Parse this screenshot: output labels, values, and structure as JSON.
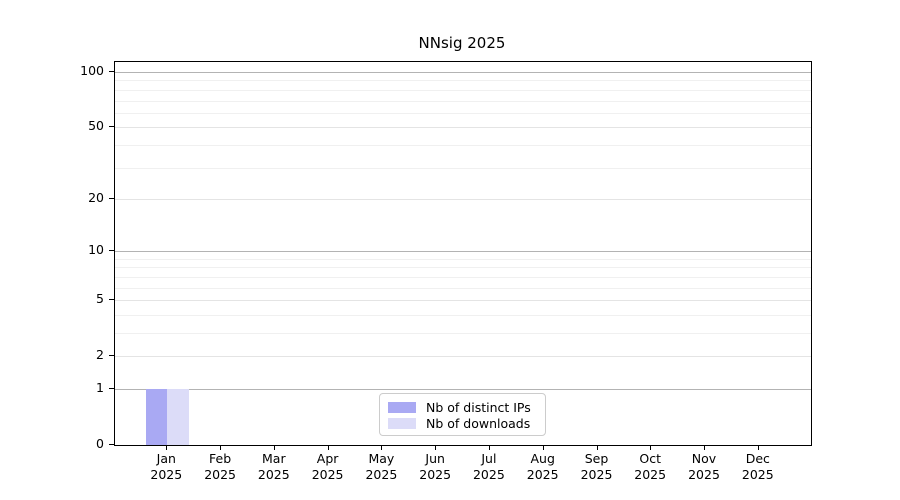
{
  "chart_data": {
    "type": "bar",
    "title": "NNsig 2025",
    "categories": [
      "Jan 2025",
      "Feb 2025",
      "Mar 2025",
      "Apr 2025",
      "May 2025",
      "Jun 2025",
      "Jul 2025",
      "Aug 2025",
      "Sep 2025",
      "Oct 2025",
      "Nov 2025",
      "Dec 2025"
    ],
    "x_tick_month": [
      "Jan",
      "Feb",
      "Mar",
      "Apr",
      "May",
      "Jun",
      "Jul",
      "Aug",
      "Sep",
      "Oct",
      "Nov",
      "Dec"
    ],
    "x_tick_year": "2025",
    "series": [
      {
        "name": "Nb of distinct IPs",
        "color": "#a9a9f3",
        "values": [
          1,
          0,
          0,
          0,
          0,
          0,
          0,
          0,
          0,
          0,
          0,
          0
        ]
      },
      {
        "name": "Nb of downloads",
        "color": "#dcdcf8",
        "values": [
          1,
          0,
          0,
          0,
          0,
          0,
          0,
          0,
          0,
          0,
          0,
          0
        ]
      }
    ],
    "yscale": "log1p",
    "ylim": [
      0,
      113
    ],
    "y_tick_labels": [
      0,
      1,
      2,
      5,
      10,
      20,
      50,
      100
    ],
    "grid": {
      "enabled": true,
      "major_values": [
        1,
        10,
        100
      ],
      "sub_values": [
        2,
        5,
        20,
        50
      ],
      "minor_values": [
        3,
        4,
        6,
        7,
        8,
        9,
        30,
        40,
        60,
        70,
        80,
        90
      ]
    },
    "legend": {
      "position": "lower center",
      "entries": [
        "Nb of distinct IPs",
        "Nb of downloads"
      ]
    }
  },
  "colors": {
    "background": "#ffffff",
    "spine": "#000000",
    "text": "#000000",
    "grid_major": "#b3b3b3",
    "grid_sub": "#e4e4e4",
    "grid_minor": "#f0f0f0",
    "legend_border": "#cccccc",
    "series_distinct_ips": "#a9a9f3",
    "series_downloads": "#dcdcf8"
  }
}
